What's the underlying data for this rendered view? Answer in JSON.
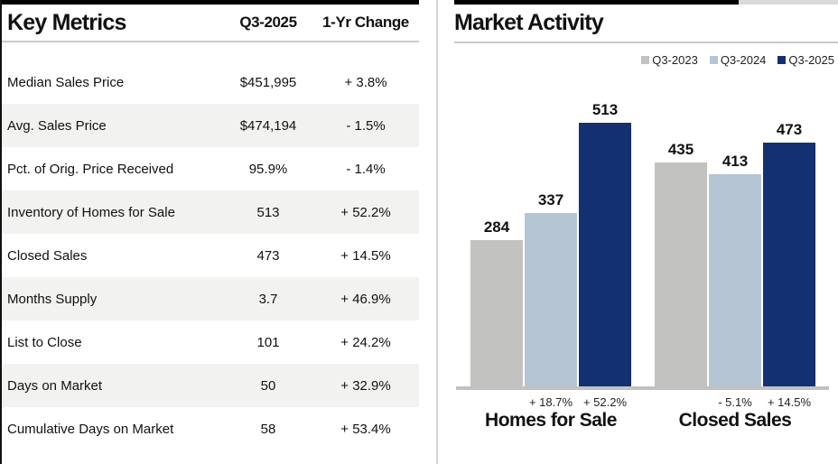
{
  "left_panel": {
    "title": "Key Metrics",
    "columns": [
      "Q3-2025",
      "1-Yr Change"
    ],
    "rows": [
      {
        "label": "Median Sales Price",
        "value": "$451,995",
        "change": "+ 3.8%"
      },
      {
        "label": "Avg. Sales Price",
        "value": "$474,194",
        "change": "- 1.5%"
      },
      {
        "label": "Pct. of Orig. Price Received",
        "value": "95.9%",
        "change": "- 1.4%"
      },
      {
        "label": "Inventory of Homes for Sale",
        "value": "513",
        "change": "+ 52.2%"
      },
      {
        "label": "Closed Sales",
        "value": "473",
        "change": "+ 14.5%"
      },
      {
        "label": "Months Supply",
        "value": "3.7",
        "change": "+ 46.9%"
      },
      {
        "label": "List to Close",
        "value": "101",
        "change": "+ 24.2%"
      },
      {
        "label": "Days on Market",
        "value": "50",
        "change": "+ 32.9%"
      },
      {
        "label": "Cumulative Days on Market",
        "value": "58",
        "change": "+ 53.4%"
      }
    ]
  },
  "right_panel": {
    "title": "Market Activity"
  },
  "chart_data": {
    "type": "bar",
    "title": "Market Activity",
    "categories": [
      "Homes for Sale",
      "Closed Sales"
    ],
    "series": [
      {
        "name": "Q3-2023",
        "color": "#c2c2c0",
        "values": [
          284,
          435
        ]
      },
      {
        "name": "Q3-2024",
        "color": "#b5c5d4",
        "values": [
          337,
          413
        ]
      },
      {
        "name": "Q3-2025",
        "color": "#133170",
        "values": [
          513,
          473
        ]
      }
    ],
    "change_labels": [
      [
        null,
        "+ 18.7%",
        "+ 52.2%"
      ],
      [
        null,
        "- 5.1%",
        "+ 14.5%"
      ]
    ],
    "bar_value_labels_shown": true,
    "ylim": [
      0,
      560
    ],
    "grid": false,
    "y_axis_shown": false,
    "legend_position": "top-right"
  },
  "colors": {
    "row_shade": "#f2f2f0",
    "rule_black": "#000000",
    "header_underline": "#c9c9c9",
    "baseline": "#c1c1c1"
  }
}
